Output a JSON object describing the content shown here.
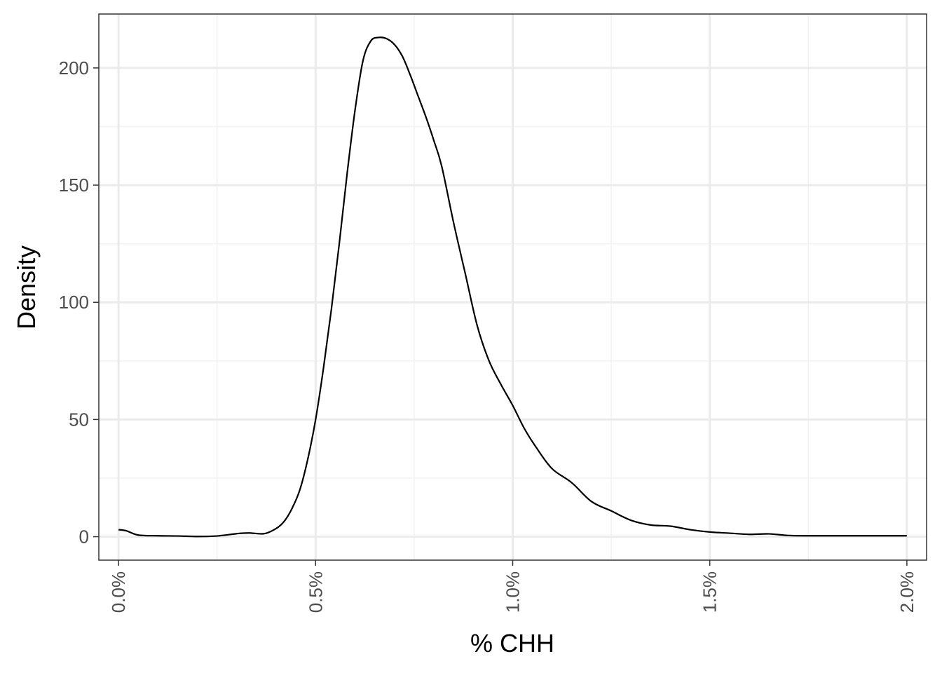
{
  "chart_data": {
    "type": "line",
    "title": "",
    "xlabel": "% CHH",
    "ylabel": "Density",
    "x_unit": "%",
    "xlim": [
      -0.05,
      2.05
    ],
    "ylim": [
      -10,
      223
    ],
    "x_major_ticks": [
      0.0,
      0.5,
      1.0,
      1.5,
      2.0
    ],
    "x_tick_labels": [
      "0.0%",
      "0.5%",
      "1.0%",
      "1.5%",
      "2.0%"
    ],
    "x_minor_ticks": [
      0.25,
      0.75,
      1.25,
      1.75
    ],
    "y_major_ticks": [
      0,
      50,
      100,
      150,
      200
    ],
    "y_tick_labels": [
      "0",
      "50",
      "100",
      "150",
      "200"
    ],
    "y_minor_ticks": [
      25,
      75,
      125,
      175
    ],
    "grid": true,
    "legend": "none",
    "theme": "bw",
    "colors": {
      "line": "#000000",
      "grid_major": "#ebebeb",
      "grid_minor": "#f2f2f2",
      "panel_border": "#333333",
      "tick_text": "#4d4d4d"
    },
    "series": [
      {
        "x": [
          0.0,
          0.02,
          0.05,
          0.1,
          0.15,
          0.2,
          0.25,
          0.3,
          0.33,
          0.37,
          0.4,
          0.42,
          0.44,
          0.46,
          0.48,
          0.5,
          0.52,
          0.54,
          0.56,
          0.58,
          0.6,
          0.62,
          0.64,
          0.66,
          0.68,
          0.7,
          0.72,
          0.74,
          0.76,
          0.78,
          0.8,
          0.82,
          0.85,
          0.88,
          0.91,
          0.94,
          0.97,
          1.0,
          1.03,
          1.06,
          1.1,
          1.15,
          1.2,
          1.25,
          1.3,
          1.35,
          1.4,
          1.45,
          1.5,
          1.55,
          1.6,
          1.65,
          1.7,
          1.75,
          1.8,
          1.85,
          1.9,
          1.95,
          2.0
        ],
        "values": [
          3.0,
          2.5,
          0.7,
          0.4,
          0.3,
          0.1,
          0.3,
          1.3,
          1.6,
          1.3,
          3.5,
          6.5,
          12.0,
          20.0,
          33.0,
          50.0,
          72.0,
          97.0,
          125.0,
          155.0,
          182.0,
          203.0,
          211.5,
          213.0,
          212.5,
          210.0,
          205.0,
          197.0,
          188.0,
          179.0,
          169.0,
          158.0,
          134.0,
          112.0,
          90.0,
          75.0,
          65.0,
          56.0,
          46.0,
          38.0,
          29.0,
          23.0,
          15.0,
          11.0,
          7.0,
          5.0,
          4.5,
          3.0,
          2.0,
          1.5,
          1.0,
          1.2,
          0.5,
          0.4,
          0.4,
          0.4,
          0.4,
          0.4,
          0.4
        ]
      }
    ]
  }
}
